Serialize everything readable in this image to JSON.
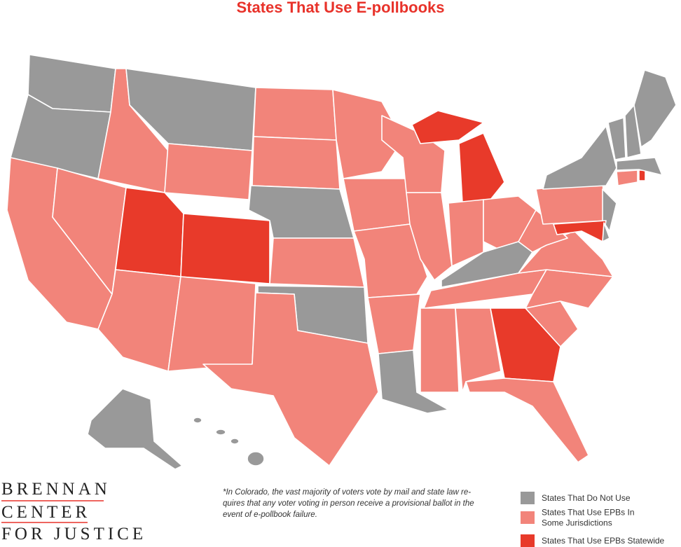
{
  "title": "States That Use E-pollbooks",
  "note": [
    "*In Colorado, the vast majority of voters vote by mail and state law re-",
    "quires that any voter voting in person receive a provisional ballot in the",
    "event of e-pollbook failure."
  ],
  "logo": [
    "BRENNAN",
    "CENTER",
    "FOR JUSTICE"
  ],
  "legend": [
    {
      "label": [
        "States That Do Not Use"
      ],
      "color": "#999999"
    },
    {
      "label": [
        "States That Use EPBs In",
        "Some Jurisdictions"
      ],
      "color": "#f2847a"
    },
    {
      "label": [
        "States That Use EPBs Statewide"
      ],
      "color": "#e83a2a"
    }
  ]
}
